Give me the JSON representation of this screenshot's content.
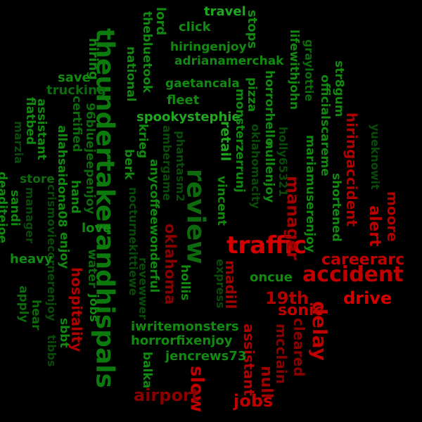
{
  "background": "#000000",
  "palette": {
    "bright_green": "#1fa81f",
    "green": "#128a12",
    "dark_green": "#0d6a0d",
    "faded_green": "#0a4a0a",
    "bright_red": "#d40000",
    "red": "#b00000",
    "dark_red": "#8a0000"
  },
  "words": [
    {
      "text": "theundertakerandhispals",
      "color": "#0d7a0d"
    },
    {
      "text": "review",
      "color": "#0d6a0d"
    },
    {
      "text": "traffic",
      "color": "#d40000"
    },
    {
      "text": "accident",
      "color": "#c00000"
    },
    {
      "text": "delay",
      "color": "#c00000"
    },
    {
      "text": "drive",
      "color": "#d40000"
    },
    {
      "text": "19th",
      "color": "#b00000"
    },
    {
      "text": "careerarc",
      "color": "#c00000"
    },
    {
      "text": "manager",
      "color": "#a00000"
    },
    {
      "text": "alert",
      "color": "#c00000"
    },
    {
      "text": "moore",
      "color": "#b00000"
    },
    {
      "text": "hiringaccident",
      "color": "#b00000"
    },
    {
      "text": "oklahoma",
      "color": "#8a0000"
    },
    {
      "text": "madill",
      "color": "#a00000"
    },
    {
      "text": "sonic",
      "color": "#c00000"
    },
    {
      "text": "hospitality",
      "color": "#b00000"
    },
    {
      "text": "slow",
      "color": "#c00000"
    },
    {
      "text": "jobs",
      "color": "#c00000"
    },
    {
      "text": "airport",
      "color": "#8a0000"
    },
    {
      "text": "assistant",
      "color": "#b00000"
    },
    {
      "text": "null",
      "color": "#a00000"
    },
    {
      "text": "mcclain",
      "color": "#8a0000"
    },
    {
      "text": "cleared",
      "color": "#8a0000"
    },
    {
      "text": "travel",
      "color": "#1fa81f"
    },
    {
      "text": "click",
      "color": "#128a12"
    },
    {
      "text": "lord",
      "color": "#128a12"
    },
    {
      "text": "stops",
      "color": "#128a12"
    },
    {
      "text": "hiringenjoy",
      "color": "#128a12"
    },
    {
      "text": "adrianamerchak",
      "color": "#128a12"
    },
    {
      "text": "national",
      "color": "#128a12"
    },
    {
      "text": "thebluetook",
      "color": "#128a12"
    },
    {
      "text": "gaetancala",
      "color": "#128a12"
    },
    {
      "text": "save",
      "color": "#128a12"
    },
    {
      "text": "trucking",
      "color": "#0d6a0d"
    },
    {
      "text": "hiring",
      "color": "#128a12"
    },
    {
      "text": "fleet",
      "color": "#128a12"
    },
    {
      "text": "spookystephie",
      "color": "#1fa81f"
    },
    {
      "text": "monsterzerrunj",
      "color": "#128a12"
    },
    {
      "text": "pizza",
      "color": "#128a12"
    },
    {
      "text": "horrorhello",
      "color": "#128a12"
    },
    {
      "text": "lifewithjohn",
      "color": "#128a12"
    },
    {
      "text": "graylottie",
      "color": "#0d6a0d"
    },
    {
      "text": "str8gum",
      "color": "#128a12"
    },
    {
      "text": "assistant",
      "color": "#128a12"
    },
    {
      "text": "flatbed",
      "color": "#128a12"
    },
    {
      "text": "allahsaidona08",
      "color": "#128a12"
    },
    {
      "text": "certified",
      "color": "#0d6a0d"
    },
    {
      "text": "96bluejeepenjoy",
      "color": "#0d6a0d"
    },
    {
      "text": "marzia",
      "color": "#0a4a0a"
    },
    {
      "text": "krieg",
      "color": "#128a12"
    },
    {
      "text": "berk",
      "color": "#128a12"
    },
    {
      "text": "ambergame",
      "color": "#0a4a0a"
    },
    {
      "text": "phantasm2",
      "color": "#0a4a0a"
    },
    {
      "text": "retail",
      "color": "#1fa81f"
    },
    {
      "text": "oklahomacity",
      "color": "#0a4a0a"
    },
    {
      "text": "holly65321",
      "color": "#0a4a0a"
    },
    {
      "text": "nullenjoy",
      "color": "#128a12"
    },
    {
      "text": "mariamuserenjoy",
      "color": "#128a12"
    },
    {
      "text": "officialscareme",
      "color": "#128a12"
    },
    {
      "text": "shortened",
      "color": "#128a12"
    },
    {
      "text": "yueknowit",
      "color": "#0a4a0a"
    },
    {
      "text": "deaditejoe",
      "color": "#128a12"
    },
    {
      "text": "store",
      "color": "#0d6a0d"
    },
    {
      "text": "sandi",
      "color": "#128a12"
    },
    {
      "text": "manager",
      "color": "#0a4a0a"
    },
    {
      "text": "crismoviecornerenjoy",
      "color": "#0a4a0a"
    },
    {
      "text": "hand",
      "color": "#128a12"
    },
    {
      "text": "enjoy",
      "color": "#128a12"
    },
    {
      "text": "love",
      "color": "#128a12"
    },
    {
      "text": "anycoffeewonderful",
      "color": "#128a12"
    },
    {
      "text": "vincent",
      "color": "#128a12"
    },
    {
      "text": "heavy",
      "color": "#128a12"
    },
    {
      "text": "water",
      "color": "#0d6a0d"
    },
    {
      "text": "nocturnekittiewe",
      "color": "#0a4a0a"
    },
    {
      "text": "revewwer",
      "color": "#0a4a0a"
    },
    {
      "text": "hollis",
      "color": "#128a12"
    },
    {
      "text": "express",
      "color": "#0a4a0a"
    },
    {
      "text": "oncue",
      "color": "#128a12"
    },
    {
      "text": "apply",
      "color": "#0d6a0d"
    },
    {
      "text": "hear",
      "color": "#0d6a0d"
    },
    {
      "text": "sbbt",
      "color": "#128a12"
    },
    {
      "text": "tibbs",
      "color": "#0a4a0a"
    },
    {
      "text": "jobs",
      "color": "#128a12"
    },
    {
      "text": "iwritemonsters",
      "color": "#128a12"
    },
    {
      "text": "horrorfixenjoy",
      "color": "#128a12"
    },
    {
      "text": "jencrews73",
      "color": "#128a12"
    },
    {
      "text": "balka",
      "color": "#128a12"
    }
  ]
}
